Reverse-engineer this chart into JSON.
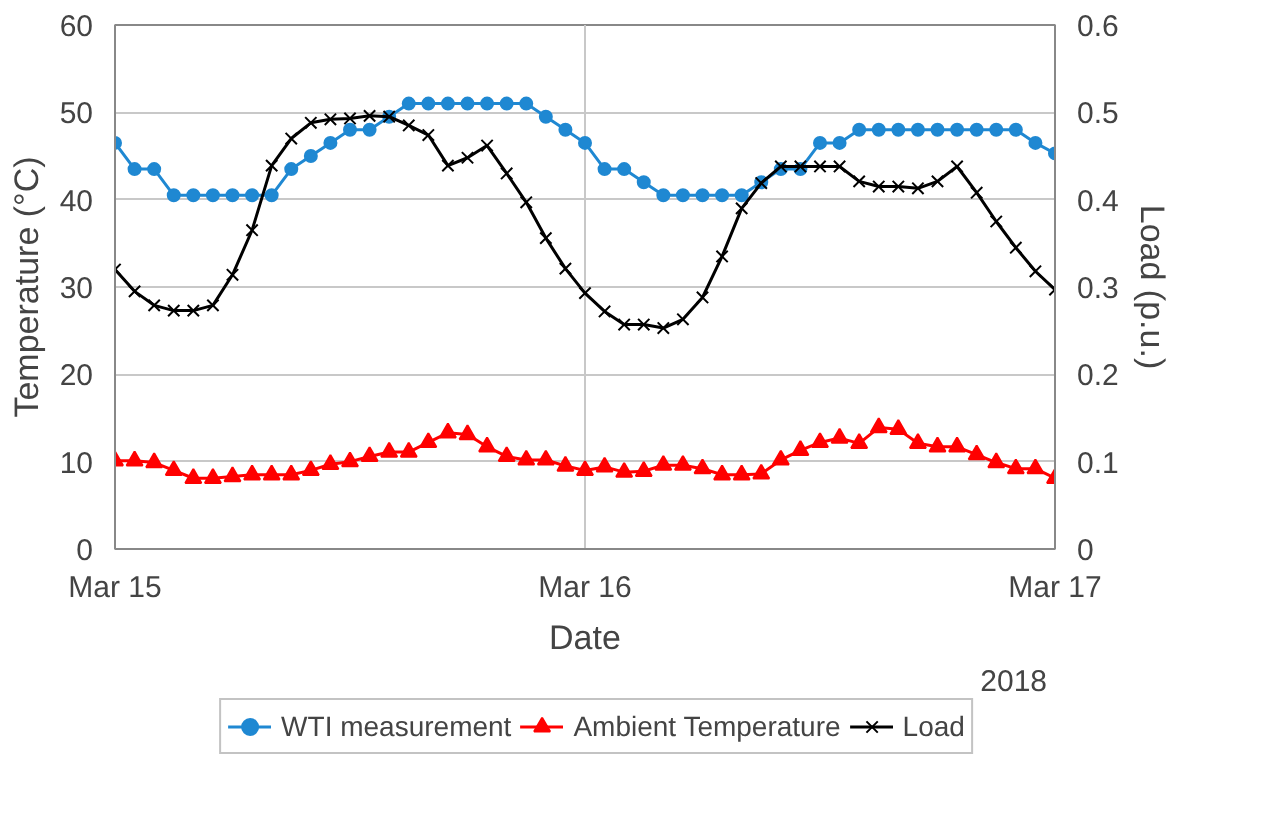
{
  "chart_data": {
    "type": "line",
    "xlabel": "Date",
    "ylabel": "Temperature (°C)",
    "y2label": "Load (p.u.)",
    "x": [
      "2018-03-15T00:00",
      "2018-03-15T01:00",
      "2018-03-15T02:00",
      "2018-03-15T03:00",
      "2018-03-15T04:00",
      "2018-03-15T05:00",
      "2018-03-15T06:00",
      "2018-03-15T07:00",
      "2018-03-15T08:00",
      "2018-03-15T09:00",
      "2018-03-15T10:00",
      "2018-03-15T11:00",
      "2018-03-15T12:00",
      "2018-03-15T13:00",
      "2018-03-15T14:00",
      "2018-03-15T15:00",
      "2018-03-15T16:00",
      "2018-03-15T17:00",
      "2018-03-15T18:00",
      "2018-03-15T19:00",
      "2018-03-15T20:00",
      "2018-03-15T21:00",
      "2018-03-15T22:00",
      "2018-03-15T23:00",
      "2018-03-16T00:00",
      "2018-03-16T01:00",
      "2018-03-16T02:00",
      "2018-03-16T03:00",
      "2018-03-16T04:00",
      "2018-03-16T05:00",
      "2018-03-16T06:00",
      "2018-03-16T07:00",
      "2018-03-16T08:00",
      "2018-03-16T09:00",
      "2018-03-16T10:00",
      "2018-03-16T11:00",
      "2018-03-16T12:00",
      "2018-03-16T13:00",
      "2018-03-16T14:00",
      "2018-03-16T15:00",
      "2018-03-16T16:00",
      "2018-03-16T17:00",
      "2018-03-16T18:00",
      "2018-03-16T19:00",
      "2018-03-16T20:00",
      "2018-03-16T21:00",
      "2018-03-16T22:00",
      "2018-03-16T23:00",
      "2018-03-17T00:00"
    ],
    "xlim": [
      "2018-03-15",
      "2018-03-17"
    ],
    "xticks": [
      {
        "value": "2018-03-15",
        "label": "Mar 15"
      },
      {
        "value": "2018-03-16",
        "label": "Mar 16"
      },
      {
        "value": "2018-03-17",
        "label": "Mar 17"
      }
    ],
    "ylim": [
      0,
      60
    ],
    "yticks": [
      0,
      10,
      20,
      30,
      40,
      50,
      60
    ],
    "y2lim": [
      0,
      0.6
    ],
    "y2ticks": [
      0,
      0.1,
      0.2,
      0.3,
      0.4,
      0.5,
      0.6
    ],
    "series": [
      {
        "name": "WTI measurement",
        "color": "#1f88d2",
        "marker": "circle",
        "values": [
          46.5,
          43.5,
          43.5,
          40.5,
          40.5,
          40.5,
          40.5,
          40.5,
          40.5,
          43.5,
          45,
          46.5,
          48,
          48,
          49.5,
          51,
          51,
          51,
          51,
          51,
          51,
          51,
          49.5,
          48,
          46.5,
          43.5,
          43.5,
          42,
          40.5,
          40.5,
          40.5,
          40.5,
          40.5,
          42,
          43.5,
          43.5,
          46.5,
          46.5,
          48,
          48,
          48,
          48,
          48,
          48,
          48,
          48,
          48,
          46.5,
          45.3
        ]
      },
      {
        "name": "Ambient Temperature",
        "color": "#ff0000",
        "marker": "triangle",
        "values": [
          10.1,
          10.1,
          9.9,
          9.0,
          8.1,
          8.1,
          8.3,
          8.5,
          8.5,
          8.5,
          9.0,
          9.7,
          10.0,
          10.6,
          11.1,
          11.1,
          12.2,
          13.3,
          13.1,
          11.7,
          10.6,
          10.2,
          10.2,
          9.5,
          9.0,
          9.4,
          8.8,
          8.9,
          9.6,
          9.6,
          9.2,
          8.5,
          8.5,
          8.6,
          10.2,
          11.3,
          12.2,
          12.7,
          12.1,
          13.9,
          13.7,
          12.1,
          11.7,
          11.7,
          10.8,
          9.9,
          9.2,
          9.2,
          8.1
        ]
      },
      {
        "name": "Load",
        "color": "#000000",
        "marker": "cross",
        "axis": "y2",
        "values": [
          0.32,
          0.295,
          0.279,
          0.273,
          0.273,
          0.279,
          0.314,
          0.365,
          0.439,
          0.47,
          0.488,
          0.492,
          0.493,
          0.496,
          0.495,
          0.485,
          0.474,
          0.439,
          0.448,
          0.462,
          0.43,
          0.397,
          0.356,
          0.321,
          0.293,
          0.272,
          0.257,
          0.257,
          0.253,
          0.263,
          0.288,
          0.335,
          0.39,
          0.419,
          0.438,
          0.438,
          0.438,
          0.438,
          0.421,
          0.415,
          0.415,
          0.413,
          0.421,
          0.438,
          0.408,
          0.375,
          0.345,
          0.318,
          0.297
        ]
      }
    ],
    "grid": true,
    "legend": "bottom",
    "line_style": "solid",
    "annotations": [
      "2018"
    ]
  }
}
